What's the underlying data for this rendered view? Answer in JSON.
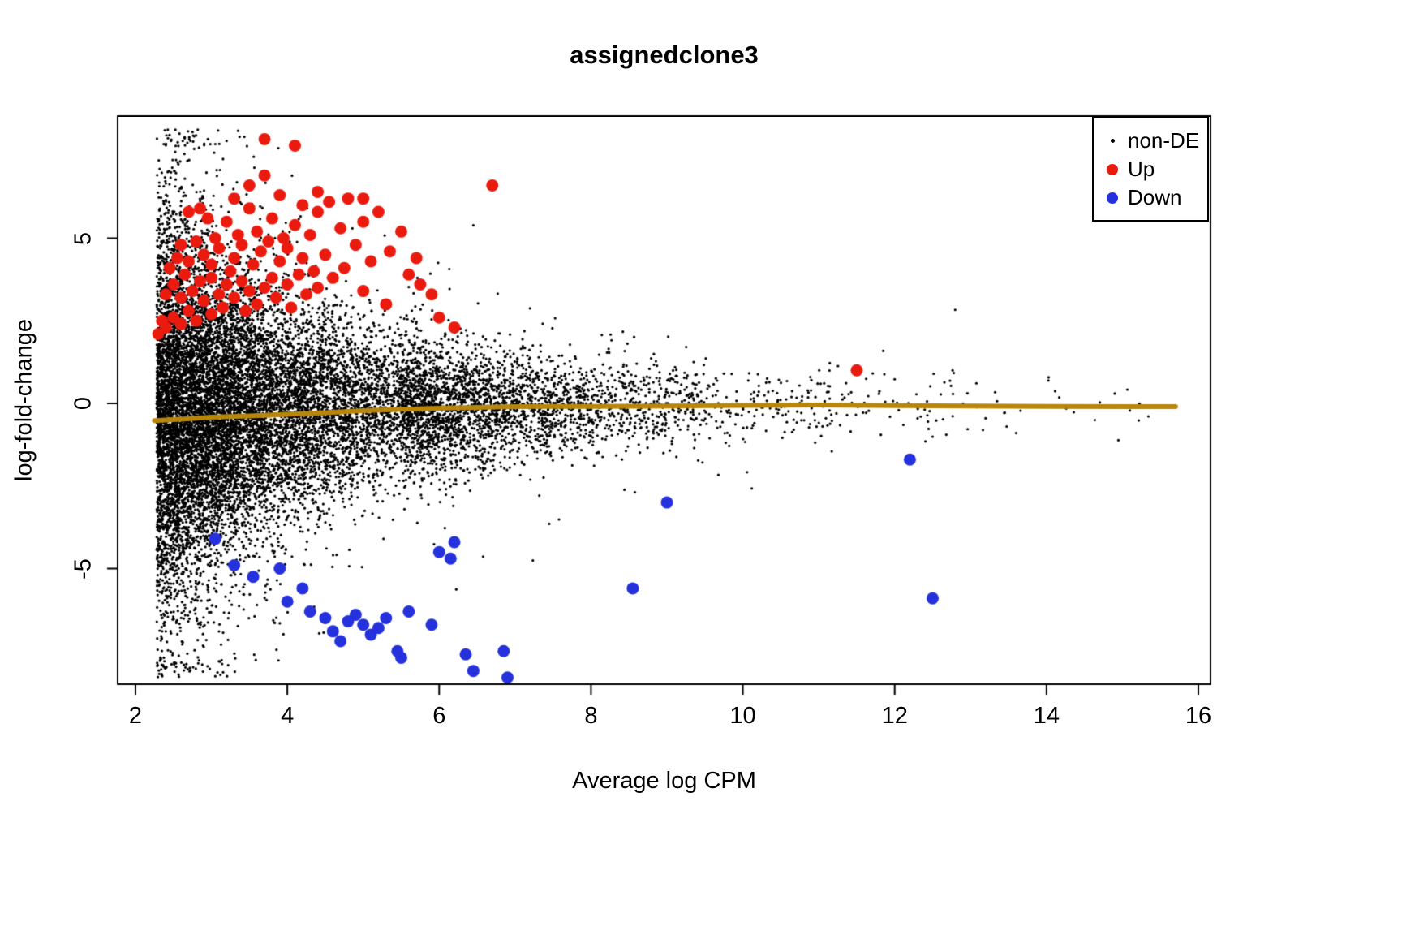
{
  "chart_data": {
    "type": "scatter",
    "title": "assignedclone3",
    "xlabel": "Average log CPM",
    "ylabel": "log-fold-change",
    "xlim": [
      1.77,
      16.16
    ],
    "ylim": [
      -8.52,
      8.72
    ],
    "xticks": [
      "2",
      "4",
      "6",
      "8",
      "10",
      "12",
      "14",
      "16"
    ],
    "xtick_values": [
      2,
      4,
      6,
      8,
      10,
      12,
      14,
      16
    ],
    "yticks": [
      "-5",
      "0",
      "5"
    ],
    "ytick_values": [
      -5,
      0,
      5
    ],
    "grid": false,
    "legend": {
      "position": "top-right",
      "entries": [
        {
          "label": "non-DE",
          "color": "#000000",
          "marker_radius": 2.5
        },
        {
          "label": "Up",
          "color": "#ea1b0e",
          "marker_radius": 7
        },
        {
          "label": "Down",
          "color": "#2431dd",
          "marker_radius": 7
        }
      ]
    },
    "series": [
      {
        "name": "non-DE",
        "type": "points",
        "color": "#000000",
        "marker_radius": 1.6,
        "generated": true,
        "generation": {
          "seed": 20240612,
          "count": 15000,
          "x_start": 2.28,
          "x_exp_scale": 1.55,
          "x_max": 15.7,
          "tail_fraction": 0.1,
          "tail_min": 5.5,
          "tail_scale": 1.9,
          "sd_base": 0.5,
          "sd_amp": 2.5,
          "sd_decay": 2.3,
          "mean_amp": -0.3,
          "mean_decay": 3.5,
          "outlier_fraction": 0.07,
          "outlier_scale": 2.1,
          "y_clip": 8.3
        }
      },
      {
        "name": "Up",
        "type": "points",
        "color": "#ea1b0e",
        "marker_radius": 7.5,
        "points": [
          [
            2.3,
            2.1
          ],
          [
            2.35,
            2.5
          ],
          [
            2.4,
            3.3
          ],
          [
            2.4,
            2.3
          ],
          [
            2.45,
            4.1
          ],
          [
            2.5,
            2.6
          ],
          [
            2.5,
            3.6
          ],
          [
            2.55,
            4.4
          ],
          [
            2.6,
            2.4
          ],
          [
            2.6,
            3.2
          ],
          [
            2.6,
            4.8
          ],
          [
            2.65,
            3.9
          ],
          [
            2.7,
            2.8
          ],
          [
            2.7,
            4.3
          ],
          [
            2.7,
            5.8
          ],
          [
            2.75,
            3.4
          ],
          [
            2.8,
            2.5
          ],
          [
            2.8,
            4.9
          ],
          [
            2.85,
            3.7
          ],
          [
            2.85,
            5.9
          ],
          [
            2.9,
            3.1
          ],
          [
            2.9,
            4.5
          ],
          [
            2.95,
            5.6
          ],
          [
            3.0,
            2.7
          ],
          [
            3.0,
            3.8
          ],
          [
            3.0,
            4.2
          ],
          [
            3.05,
            5.0
          ],
          [
            3.1,
            3.3
          ],
          [
            3.1,
            4.7
          ],
          [
            3.15,
            2.9
          ],
          [
            3.2,
            3.6
          ],
          [
            3.2,
            5.5
          ],
          [
            3.25,
            4.0
          ],
          [
            3.3,
            3.2
          ],
          [
            3.3,
            4.4
          ],
          [
            3.3,
            6.2
          ],
          [
            3.35,
            5.1
          ],
          [
            3.4,
            3.7
          ],
          [
            3.4,
            4.8
          ],
          [
            3.45,
            2.8
          ],
          [
            3.5,
            3.4
          ],
          [
            3.5,
            5.9
          ],
          [
            3.5,
            6.6
          ],
          [
            3.55,
            4.2
          ],
          [
            3.6,
            3.0
          ],
          [
            3.6,
            5.2
          ],
          [
            3.65,
            4.6
          ],
          [
            3.7,
            3.5
          ],
          [
            3.7,
            6.9
          ],
          [
            3.7,
            8.0
          ],
          [
            3.75,
            4.9
          ],
          [
            3.8,
            3.8
          ],
          [
            3.8,
            5.6
          ],
          [
            3.85,
            3.2
          ],
          [
            3.9,
            4.3
          ],
          [
            3.9,
            6.3
          ],
          [
            3.95,
            5.0
          ],
          [
            4.0,
            3.6
          ],
          [
            4.0,
            4.7
          ],
          [
            4.05,
            2.9
          ],
          [
            4.1,
            5.4
          ],
          [
            4.1,
            7.8
          ],
          [
            4.15,
            3.9
          ],
          [
            4.2,
            4.4
          ],
          [
            4.2,
            6.0
          ],
          [
            4.25,
            3.3
          ],
          [
            4.3,
            5.1
          ],
          [
            4.35,
            4.0
          ],
          [
            4.4,
            3.5
          ],
          [
            4.4,
            5.8
          ],
          [
            4.4,
            6.4
          ],
          [
            4.5,
            4.5
          ],
          [
            4.55,
            6.1
          ],
          [
            4.6,
            3.8
          ],
          [
            4.7,
            5.3
          ],
          [
            4.75,
            4.1
          ],
          [
            4.8,
            6.2
          ],
          [
            4.9,
            4.8
          ],
          [
            5.0,
            3.4
          ],
          [
            5.0,
            5.5
          ],
          [
            5.0,
            6.2
          ],
          [
            5.1,
            4.3
          ],
          [
            5.2,
            5.8
          ],
          [
            5.3,
            3.0
          ],
          [
            5.35,
            4.6
          ],
          [
            5.5,
            5.2
          ],
          [
            5.6,
            3.9
          ],
          [
            5.7,
            4.4
          ],
          [
            5.75,
            3.6
          ],
          [
            5.9,
            3.3
          ],
          [
            6.0,
            2.6
          ],
          [
            6.2,
            2.3
          ],
          [
            6.7,
            6.6
          ],
          [
            11.5,
            1.0
          ]
        ]
      },
      {
        "name": "Down",
        "type": "points",
        "color": "#2431dd",
        "marker_radius": 7.5,
        "points": [
          [
            3.05,
            -4.1
          ],
          [
            3.3,
            -4.9
          ],
          [
            3.55,
            -5.25
          ],
          [
            3.9,
            -5.0
          ],
          [
            4.0,
            -6.0
          ],
          [
            4.2,
            -5.6
          ],
          [
            4.3,
            -6.3
          ],
          [
            4.5,
            -6.5
          ],
          [
            4.6,
            -6.9
          ],
          [
            4.7,
            -7.2
          ],
          [
            4.8,
            -6.6
          ],
          [
            4.9,
            -6.4
          ],
          [
            5.0,
            -6.7
          ],
          [
            5.1,
            -7.0
          ],
          [
            5.2,
            -6.8
          ],
          [
            5.3,
            -6.5
          ],
          [
            5.45,
            -7.5
          ],
          [
            5.5,
            -7.7
          ],
          [
            5.6,
            -6.3
          ],
          [
            5.9,
            -6.7
          ],
          [
            6.0,
            -4.5
          ],
          [
            6.15,
            -4.7
          ],
          [
            6.2,
            -4.2
          ],
          [
            6.35,
            -7.6
          ],
          [
            6.45,
            -8.1
          ],
          [
            6.85,
            -7.5
          ],
          [
            6.9,
            -8.3
          ],
          [
            8.55,
            -5.6
          ],
          [
            9.0,
            -3.0
          ],
          [
            12.2,
            -1.7
          ],
          [
            12.5,
            -5.9
          ]
        ]
      },
      {
        "name": "trend",
        "type": "line",
        "color": "#B8860B",
        "line_width": 6,
        "points": [
          [
            2.25,
            -0.52
          ],
          [
            2.6,
            -0.48
          ],
          [
            3.0,
            -0.42
          ],
          [
            3.5,
            -0.38
          ],
          [
            4.0,
            -0.33
          ],
          [
            4.5,
            -0.28
          ],
          [
            5.0,
            -0.22
          ],
          [
            5.5,
            -0.18
          ],
          [
            6.0,
            -0.15
          ],
          [
            6.5,
            -0.12
          ],
          [
            7.0,
            -0.1
          ],
          [
            7.5,
            -0.09
          ],
          [
            8.0,
            -0.09
          ],
          [
            9.0,
            -0.08
          ],
          [
            10.0,
            -0.06
          ],
          [
            11.0,
            -0.05
          ],
          [
            12.0,
            -0.07
          ],
          [
            13.0,
            -0.08
          ],
          [
            14.0,
            -0.09
          ],
          [
            15.0,
            -0.1
          ],
          [
            15.7,
            -0.1
          ]
        ]
      }
    ]
  }
}
